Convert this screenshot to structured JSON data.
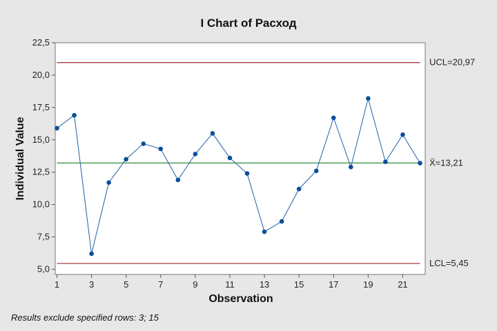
{
  "chart_data": {
    "type": "line",
    "title": "I Chart of Расход",
    "xlabel": "Observation",
    "ylabel": "Individual Value",
    "x": [
      1,
      2,
      3,
      4,
      5,
      6,
      7,
      8,
      9,
      10,
      11,
      12,
      13,
      14,
      15,
      16,
      17,
      18,
      19,
      20,
      21,
      22
    ],
    "values": [
      15.9,
      16.9,
      6.2,
      11.7,
      13.5,
      14.7,
      14.3,
      11.9,
      13.9,
      15.5,
      13.6,
      12.4,
      7.9,
      8.7,
      11.2,
      12.6,
      16.7,
      12.9,
      18.2,
      13.3,
      15.4,
      13.2
    ],
    "xlim": [
      0.9,
      22.3
    ],
    "ylim": [
      4.6,
      22.5
    ],
    "x_ticks": [
      1,
      3,
      5,
      7,
      9,
      11,
      13,
      15,
      17,
      19,
      21
    ],
    "y_ticks": [
      5.0,
      7.5,
      10.0,
      12.5,
      15.0,
      17.5,
      20.0,
      22.5
    ],
    "y_tick_labels": [
      "5,0",
      "7,5",
      "10,0",
      "12,5",
      "15,0",
      "17,5",
      "20,0",
      "22,5"
    ],
    "grid": false,
    "limits": {
      "ucl": 20.97,
      "center": 13.21,
      "lcl": 5.45,
      "ucl_label": "UCL=20,97",
      "center_label": "X̄=13,21",
      "lcl_label": "LCL=5,45"
    },
    "colors": {
      "series": "#1f5fa6",
      "marker": "#0b4f9c",
      "center_line": "#2e8b3c",
      "limit_lines": "#a0282a",
      "plot_background": "#ffffff",
      "figure_background": "#e7e7e7"
    }
  },
  "footnote": "Results exclude specified rows: 3; 15"
}
